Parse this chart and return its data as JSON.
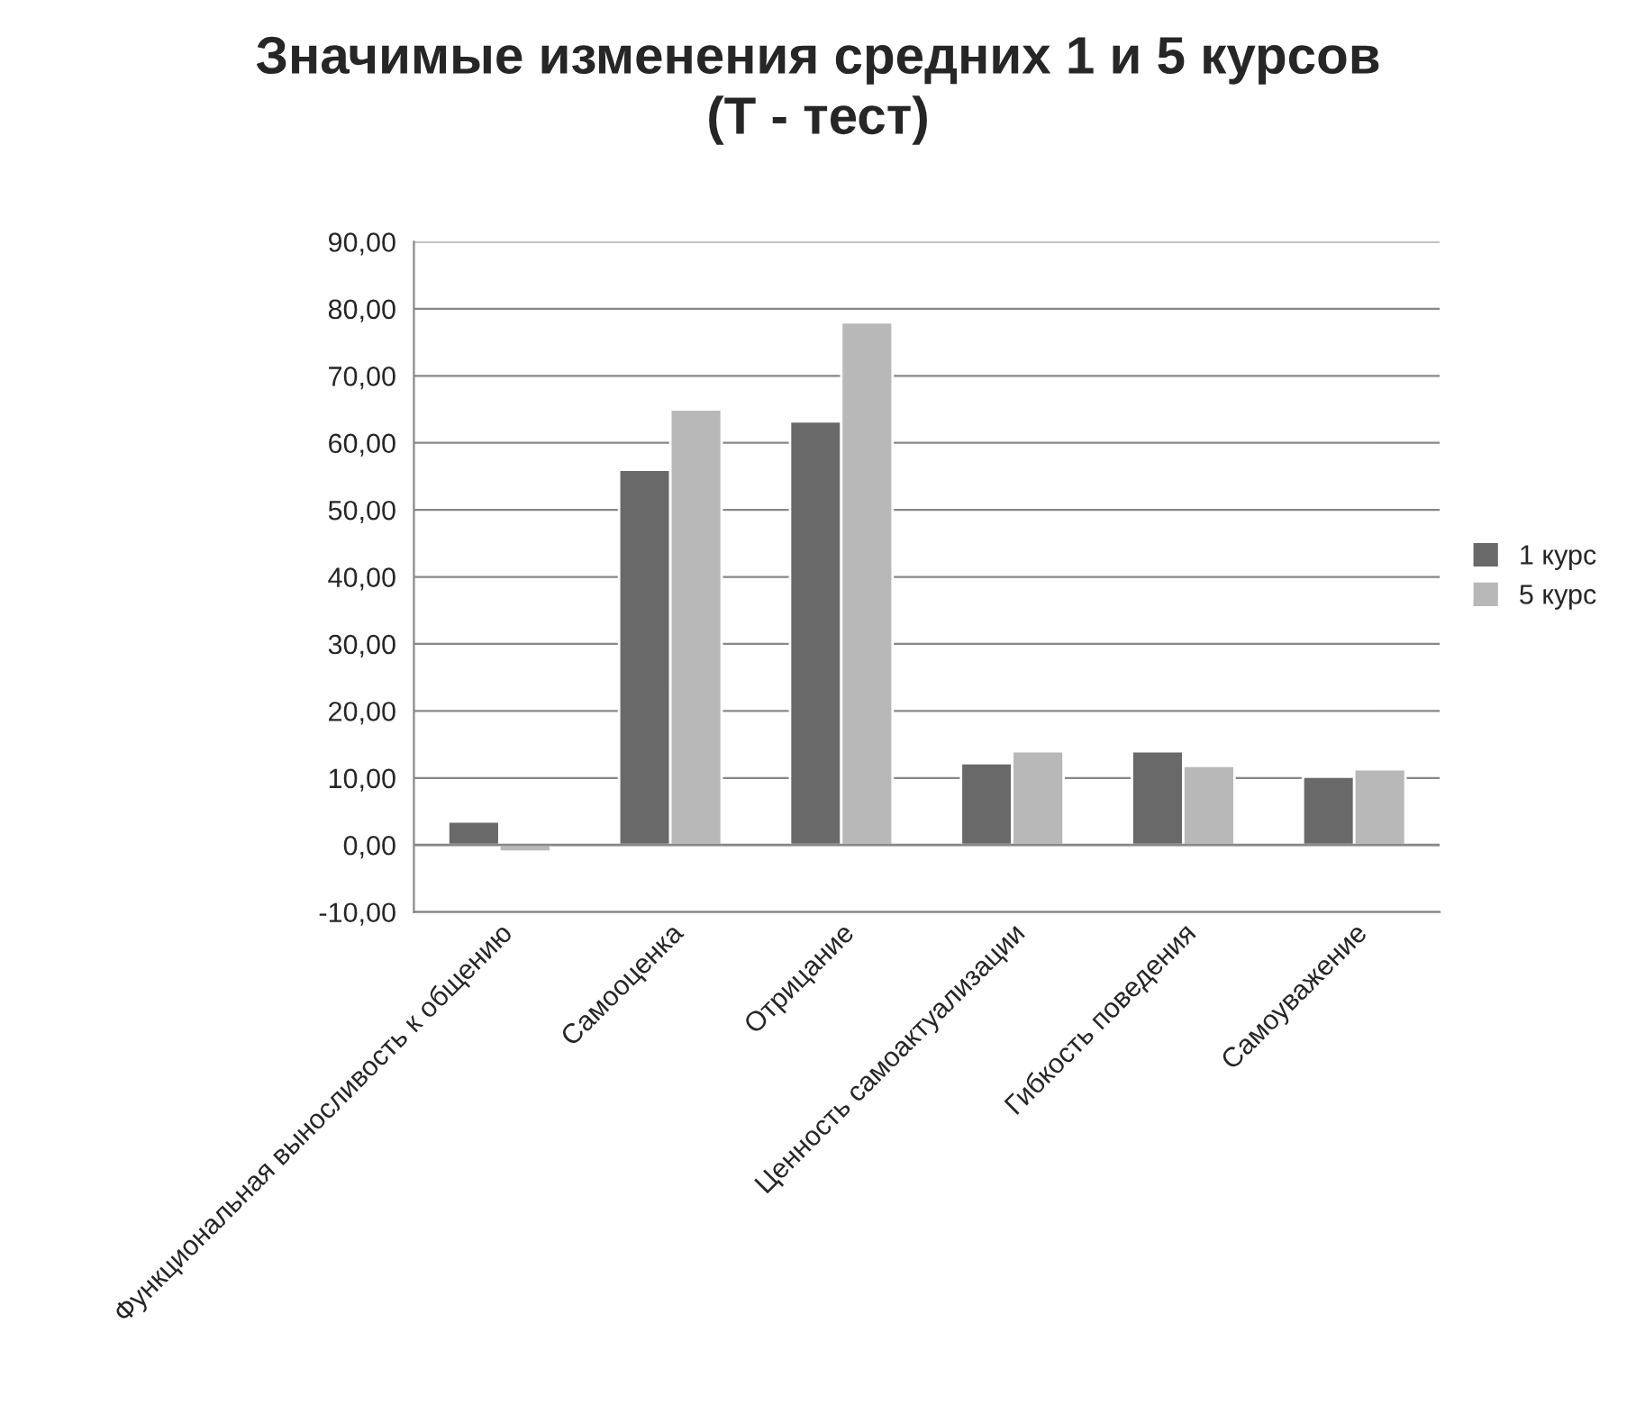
{
  "chart_data": {
    "type": "bar",
    "title": "Значимые изменения средних 1 и 5 курсов\n(Т - тест)",
    "categories": [
      "Функциональная выносливость к общению",
      "Самооценка",
      "Отрицание",
      "Ценность самоактуализации",
      "Гибкость поведения",
      "Самоуважение"
    ],
    "series": [
      {
        "name": "1 курс",
        "color": "#696969",
        "values": [
          3.5,
          56,
          63.2,
          12.2,
          14,
          10.2
        ]
      },
      {
        "name": "5 курс",
        "color": "#b8b8b8",
        "values": [
          -1,
          65,
          78,
          14,
          11.8,
          11.3
        ]
      }
    ],
    "ylim": [
      -10,
      90
    ],
    "yticks": [
      {
        "value": -10,
        "label": "-10,00"
      },
      {
        "value": 0,
        "label": "0,00"
      },
      {
        "value": 10,
        "label": "10,00"
      },
      {
        "value": 20,
        "label": "20,00"
      },
      {
        "value": 30,
        "label": "30,00"
      },
      {
        "value": 40,
        "label": "40,00"
      },
      {
        "value": 50,
        "label": "50,00"
      },
      {
        "value": 60,
        "label": "60,00"
      },
      {
        "value": 70,
        "label": "70,00"
      },
      {
        "value": 80,
        "label": "80,00"
      },
      {
        "value": 90,
        "label": "90,00"
      }
    ],
    "grid": "y",
    "legend": "right"
  }
}
